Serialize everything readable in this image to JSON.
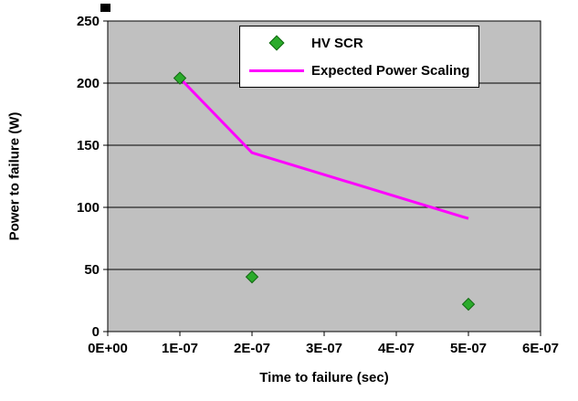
{
  "chart_data": {
    "type": "scatter",
    "title": "",
    "plot_area_color": "#c0c0c0",
    "gridline_color": "#000000",
    "grid": true,
    "legend_position": "top-center",
    "x_axis": {
      "label": "Time to failure (sec)",
      "min": 0,
      "max": 6e-07,
      "tick_values": [
        0,
        1e-07,
        2e-07,
        3e-07,
        4e-07,
        5e-07,
        6e-07
      ],
      "tick_labels": [
        "0E+00",
        "1E-07",
        "2E-07",
        "3E-07",
        "4E-07",
        "5E-07",
        "6E-07"
      ]
    },
    "y_axis": {
      "label": "Power to failure (W)",
      "min": 0,
      "max": 250,
      "tick_values": [
        0,
        50,
        100,
        150,
        200,
        250
      ],
      "tick_labels": [
        "0",
        "50",
        "100",
        "150",
        "200",
        "250"
      ]
    },
    "series": [
      {
        "name": "HV SCR",
        "type": "scatter",
        "marker": "diamond",
        "color": "#2bab2b",
        "marker_edge": "#116611",
        "x": [
          1e-07,
          2e-07,
          5e-07
        ],
        "y": [
          204,
          44,
          22
        ]
      },
      {
        "name": "Expected Power Scaling",
        "type": "line",
        "color": "#ff00ff",
        "x": [
          1e-07,
          2e-07,
          5e-07
        ],
        "y": [
          204,
          144,
          91
        ]
      }
    ]
  }
}
